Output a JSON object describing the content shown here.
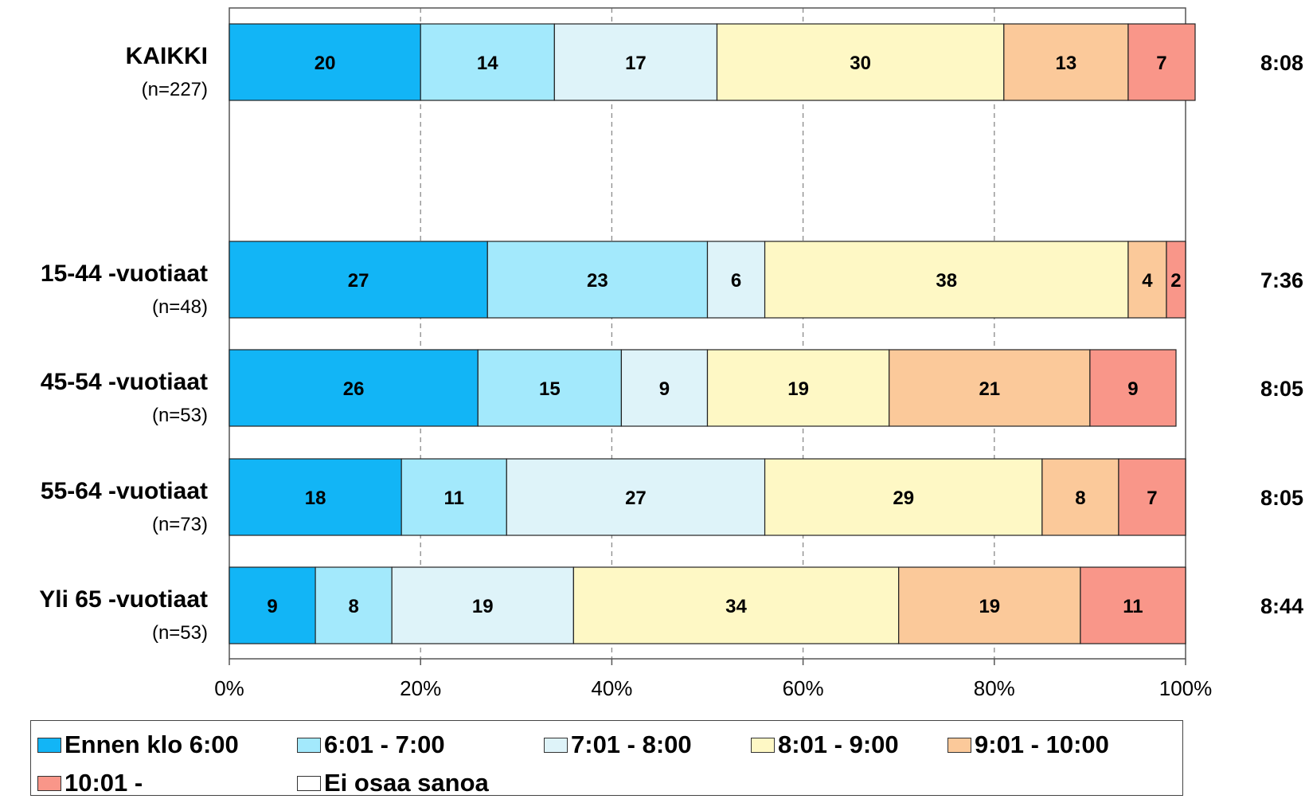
{
  "chart_data": {
    "type": "bar",
    "orientation": "horizontal",
    "stacked": true,
    "percent": true,
    "categories": [
      {
        "name": "KAIKKI",
        "n": "(n=227)",
        "avg": "8:08"
      },
      {
        "name": "15-44 -vuotiaat",
        "n": "(n=48)",
        "avg": "7:36"
      },
      {
        "name": "45-54 -vuotiaat",
        "n": "(n=53)",
        "avg": "8:05"
      },
      {
        "name": "55-64 -vuotiaat",
        "n": "(n=73)",
        "avg": "8:05"
      },
      {
        "name": "Yli 65 -vuotiaat",
        "n": "(n=53)",
        "avg": "8:44"
      }
    ],
    "series": [
      {
        "name": "Ennen klo 6:00",
        "color": "#12b5f6",
        "values": [
          20,
          27,
          26,
          18,
          9
        ]
      },
      {
        "name": "6:01 - 7:00",
        "color": "#a3e9fc",
        "values": [
          14,
          23,
          15,
          11,
          8
        ]
      },
      {
        "name": "7:01 - 8:00",
        "color": "#def3f9",
        "values": [
          17,
          6,
          9,
          27,
          19
        ]
      },
      {
        "name": "8:01 - 9:00",
        "color": "#fef8c5",
        "values": [
          30,
          38,
          19,
          29,
          34
        ]
      },
      {
        "name": "9:01 - 10:00",
        "color": "#fbc99a",
        "values": [
          13,
          4,
          21,
          8,
          19
        ]
      },
      {
        "name": "10:01 -",
        "color": "#f99689",
        "values": [
          7,
          2,
          9,
          7,
          11
        ]
      },
      {
        "name": "Ei osaa sanoa",
        "color": "#ffffff",
        "values": [
          0,
          0,
          0,
          0,
          0
        ]
      }
    ],
    "xlim": [
      0,
      100
    ],
    "xticks": [
      "0%",
      "20%",
      "40%",
      "60%",
      "80%",
      "100%"
    ],
    "grid": "vertical dashed",
    "legend_position": "bottom"
  }
}
